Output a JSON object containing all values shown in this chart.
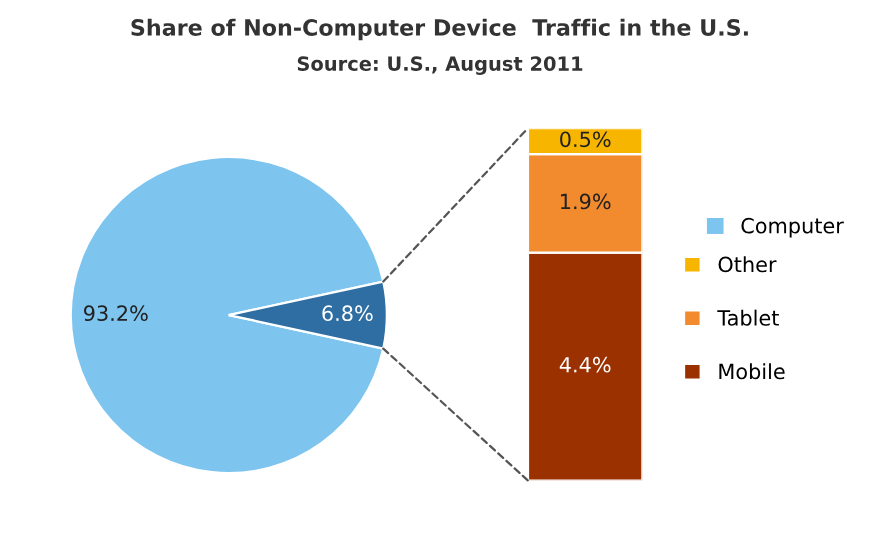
{
  "chart_data": [
    {
      "type": "pie",
      "title": "Share of Non-Computer Device  Traffic in the U.S.",
      "subtitle": "Source: U.S., August 2011",
      "categories": [
        "Computer",
        null
      ],
      "values": [
        93.2,
        6.8
      ],
      "colors": [
        "#7dc4ef",
        "#2f6ea3"
      ],
      "value_labels": [
        "93.2%",
        "6.8%"
      ],
      "legend": "right"
    },
    {
      "type": "bar",
      "stacked": true,
      "categories": [
        null
      ],
      "legend": "right",
      "series": [
        {
          "name": "Mobile",
          "color": "#9c3100",
          "values": [
            4.4
          ],
          "value_labels": [
            "4.4%"
          ]
        },
        {
          "name": "Tablet",
          "color": "#f28a2e",
          "values": [
            1.9
          ],
          "value_labels": [
            "1.9%"
          ]
        },
        {
          "name": "Other",
          "color": "#f7b500",
          "values": [
            0.5
          ],
          "value_labels": [
            "0.5%"
          ]
        }
      ]
    }
  ]
}
